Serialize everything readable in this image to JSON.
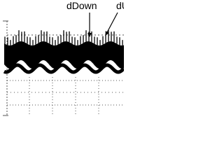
{
  "labels": {
    "down": "dDown",
    "up": "dUp"
  }
}
